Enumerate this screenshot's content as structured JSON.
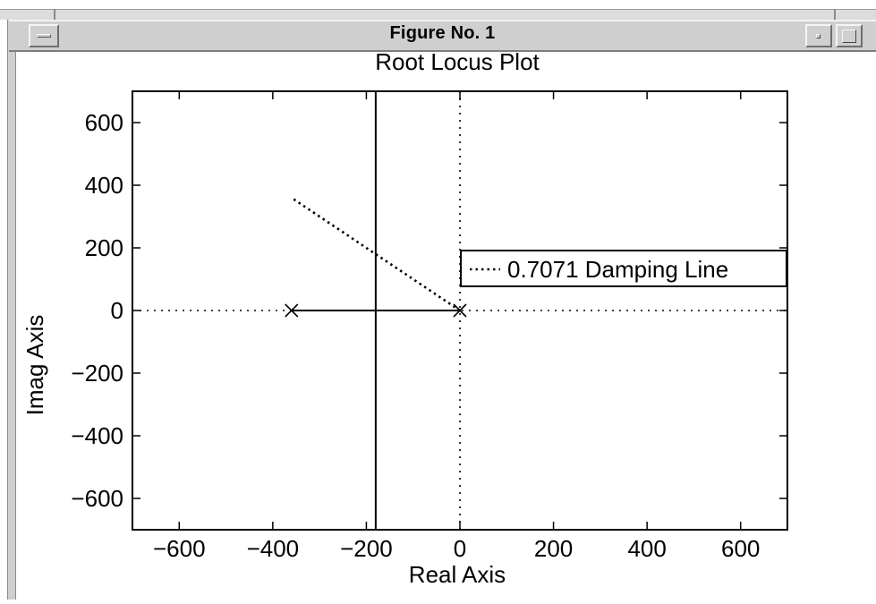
{
  "window": {
    "title": "Figure No. 1",
    "controls": [
      "window-menu",
      "minimize",
      "maximize"
    ]
  },
  "chart_data": {
    "type": "scatter",
    "title": "Root Locus Plot",
    "xlabel": "Real Axis",
    "ylabel": "Imag Axis",
    "xlim": [
      -700,
      700
    ],
    "ylim": [
      -700,
      700
    ],
    "xticks": [
      -600,
      -400,
      -200,
      0,
      200,
      400,
      600
    ],
    "yticks": [
      -600,
      -400,
      -200,
      0,
      200,
      400,
      600
    ],
    "xtick_labels": [
      "−600",
      "−400",
      "−200",
      "0",
      "200",
      "400",
      "600"
    ],
    "ytick_labels": [
      "600",
      "400",
      "200",
      "0",
      "−200",
      "−400",
      "−600"
    ],
    "grid": false,
    "poles": [
      {
        "x": -360,
        "y": 0
      },
      {
        "x": 0,
        "y": 0
      }
    ],
    "locus_segments": [
      {
        "x": [
          -360,
          0
        ],
        "y": [
          0,
          0
        ]
      },
      {
        "x": [
          -180,
          -180
        ],
        "y": [
          -700,
          700
        ]
      }
    ],
    "reference_lines": [
      {
        "orientation": "vertical",
        "value": 0,
        "style": "dotted"
      },
      {
        "orientation": "horizontal",
        "value": 0,
        "style": "dotted"
      }
    ],
    "series": [
      {
        "name": "0.7071 Damping Line",
        "style": "dotted",
        "x": [
          0,
          -360
        ],
        "y": [
          0,
          360
        ]
      }
    ],
    "legend": {
      "position": "right",
      "entries": [
        "0.7071 Damping Line"
      ]
    }
  }
}
